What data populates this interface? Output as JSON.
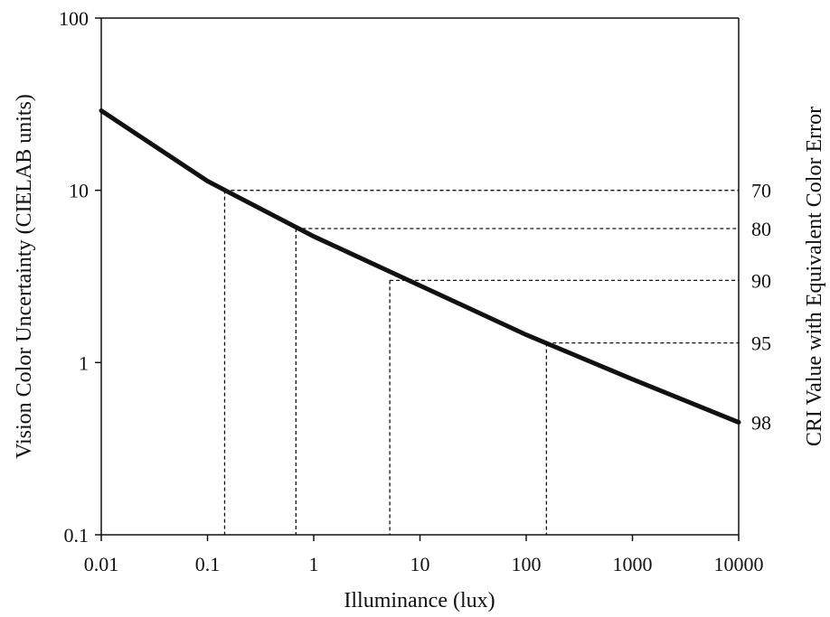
{
  "chart_data": {
    "type": "line",
    "title": "",
    "xlabel": "Illuminance (lux)",
    "ylabel": "Vision Color Uncertainty (CIELAB units)",
    "y2label": "CRI Value with Equivalent Color Error",
    "xscale": "log",
    "yscale": "log",
    "xlim": [
      0.01,
      10000
    ],
    "ylim": [
      0.1,
      100
    ],
    "x_ticks": [
      "0.01",
      "0.1",
      "1",
      "10",
      "100",
      "1000",
      "10000"
    ],
    "y_ticks": [
      "0.1",
      "1",
      "10",
      "100"
    ],
    "grid": false,
    "legend": "none",
    "series": [
      {
        "x": [
          0.01,
          0.1,
          1,
          10,
          100,
          1000,
          10000
        ],
        "y": [
          29,
          11.3,
          5.4,
          2.8,
          1.45,
          0.8,
          0.45
        ]
      }
    ],
    "cri_markers": [
      {
        "label": "70",
        "x": 0.145,
        "y": 10
      },
      {
        "label": "80",
        "x": 0.68,
        "y": 6
      },
      {
        "label": "90",
        "x": 5.2,
        "y": 3
      },
      {
        "label": "95",
        "x": 155,
        "y": 1.3
      },
      {
        "label": "98",
        "x": 10000,
        "y": 0.45
      }
    ],
    "colors": {
      "curve": "#111111",
      "guides": "#111111"
    }
  }
}
